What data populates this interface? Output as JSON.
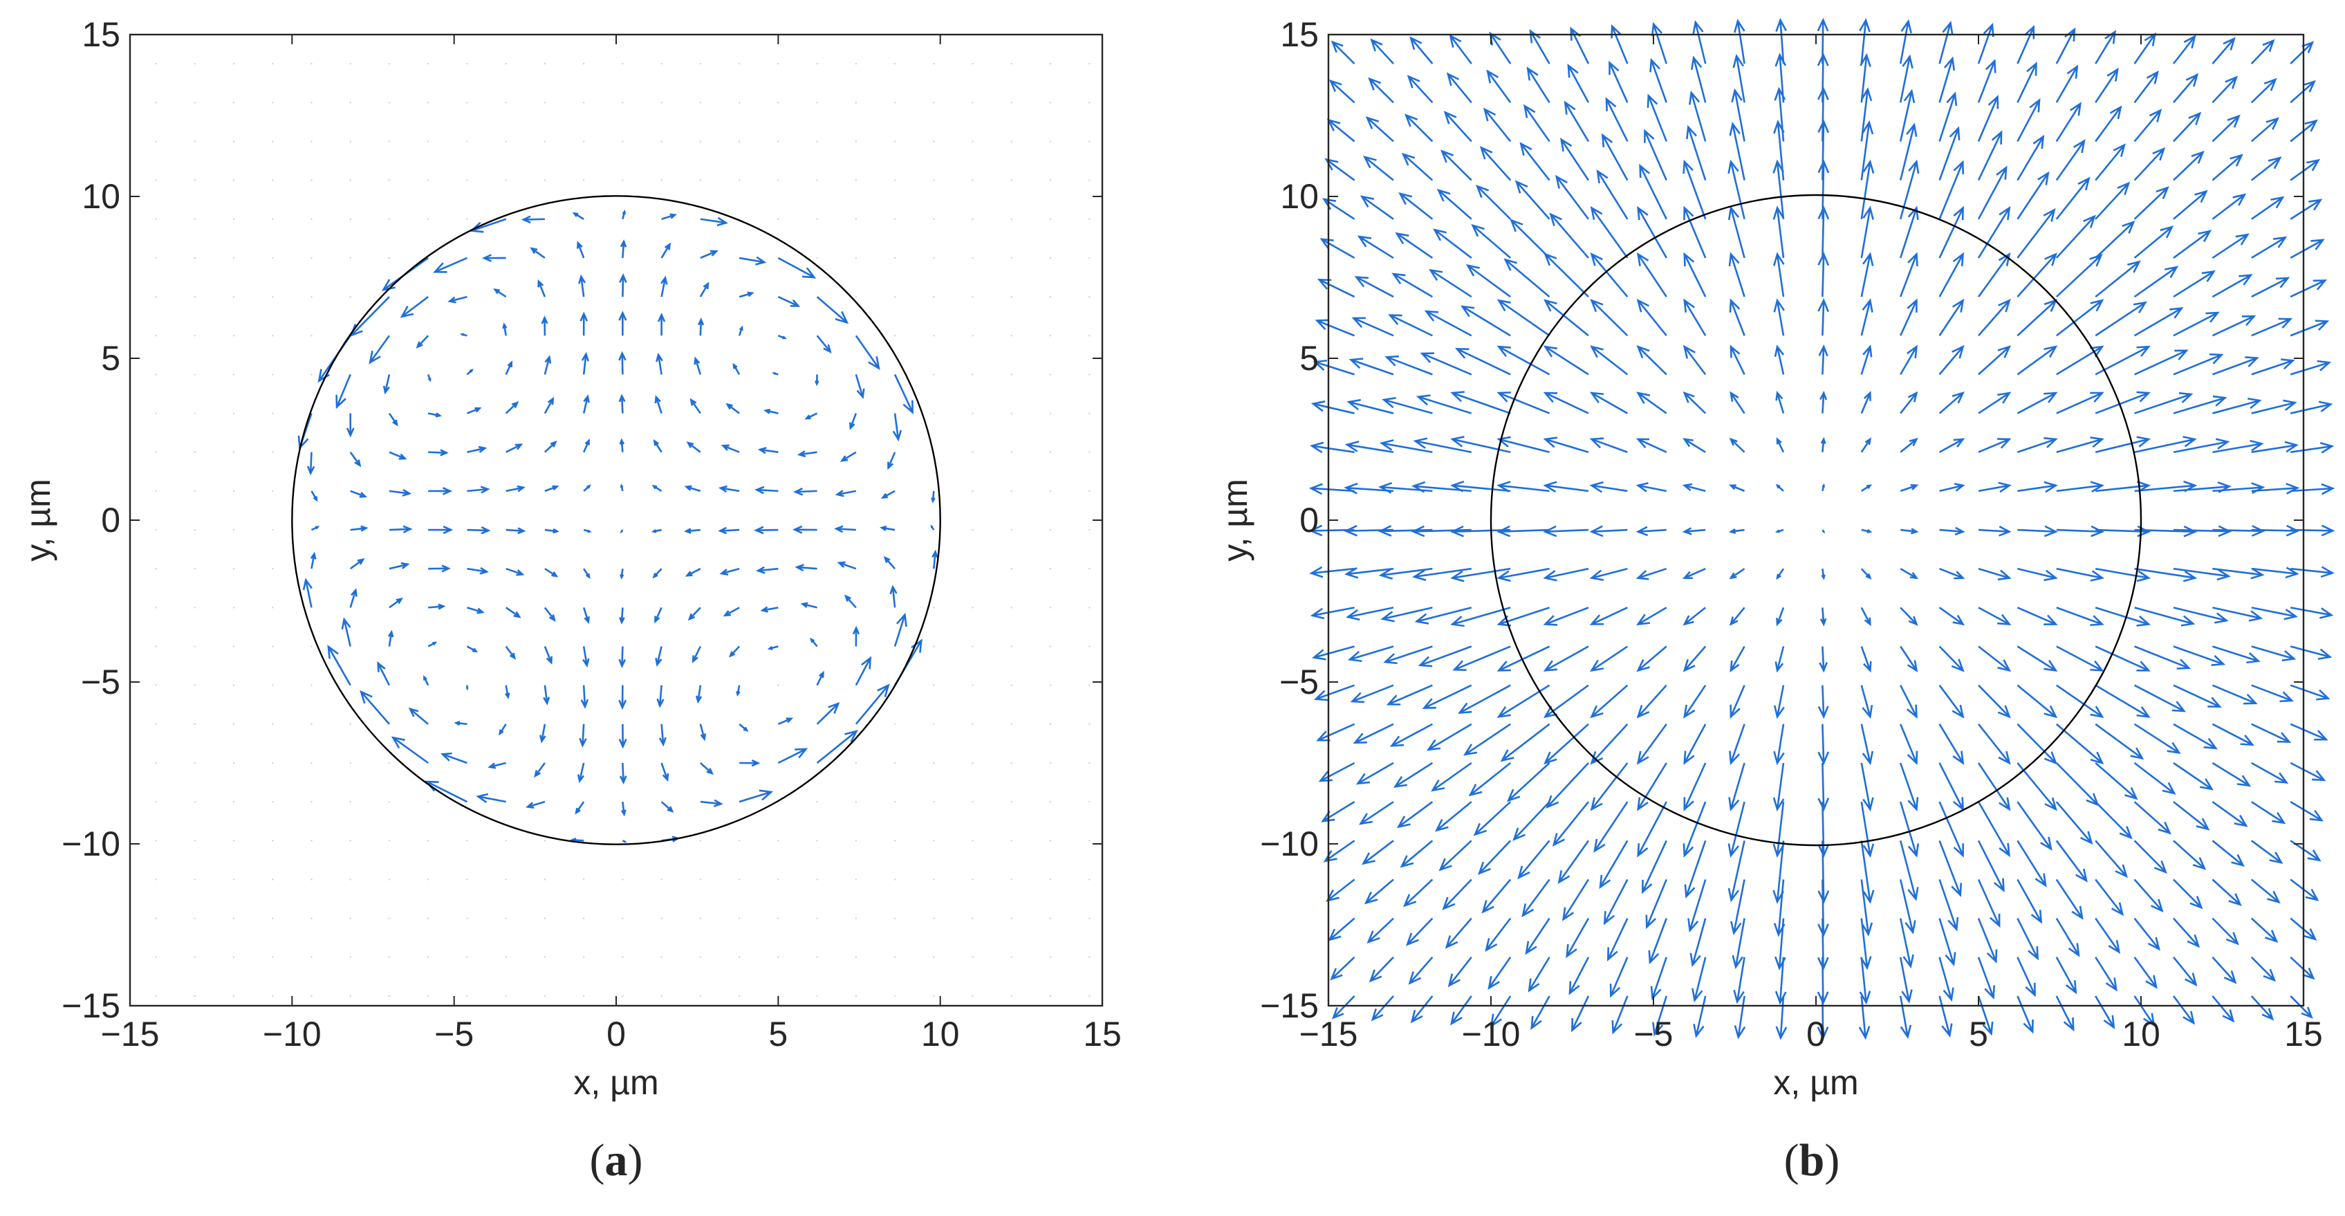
{
  "chart_data": [
    {
      "type": "quiver",
      "caption_letter": "a",
      "xlabel": "x, µm",
      "ylabel": "y, µm",
      "xlim": [
        -15,
        15
      ],
      "ylim": [
        -15,
        15
      ],
      "xticks": [
        -15,
        -10,
        -5,
        0,
        5,
        10,
        15
      ],
      "yticks": [
        -15,
        -10,
        -5,
        0,
        5,
        10,
        15
      ],
      "grid": false,
      "circle": {
        "center": [
          0,
          0
        ],
        "radius": 10,
        "color": "#000000"
      },
      "field": "four-vortex flow inside circle: inflow along x-axis, outflow along y-axis, tangential at boundary, ~zero outside",
      "arrow_spacing": 1.2,
      "arrow_color": "#1f6fd8"
    },
    {
      "type": "quiver",
      "caption_letter": "b",
      "xlabel": "x, µm",
      "ylabel": "y, µm",
      "xlim": [
        -15,
        15
      ],
      "ylim": [
        -15,
        15
      ],
      "xticks": [
        -15,
        -10,
        -5,
        0,
        5,
        10,
        15
      ],
      "yticks": [
        -15,
        -10,
        -5,
        0,
        5,
        10,
        15
      ],
      "grid": false,
      "circle": {
        "center": [
          0,
          0
        ],
        "radius": 10,
        "color": "#000000"
      },
      "field": "radial outward field: magnitude grows with r inside circle, decays ~1/r outside",
      "arrow_spacing": 1.2,
      "arrow_color": "#1f6fd8"
    }
  ]
}
